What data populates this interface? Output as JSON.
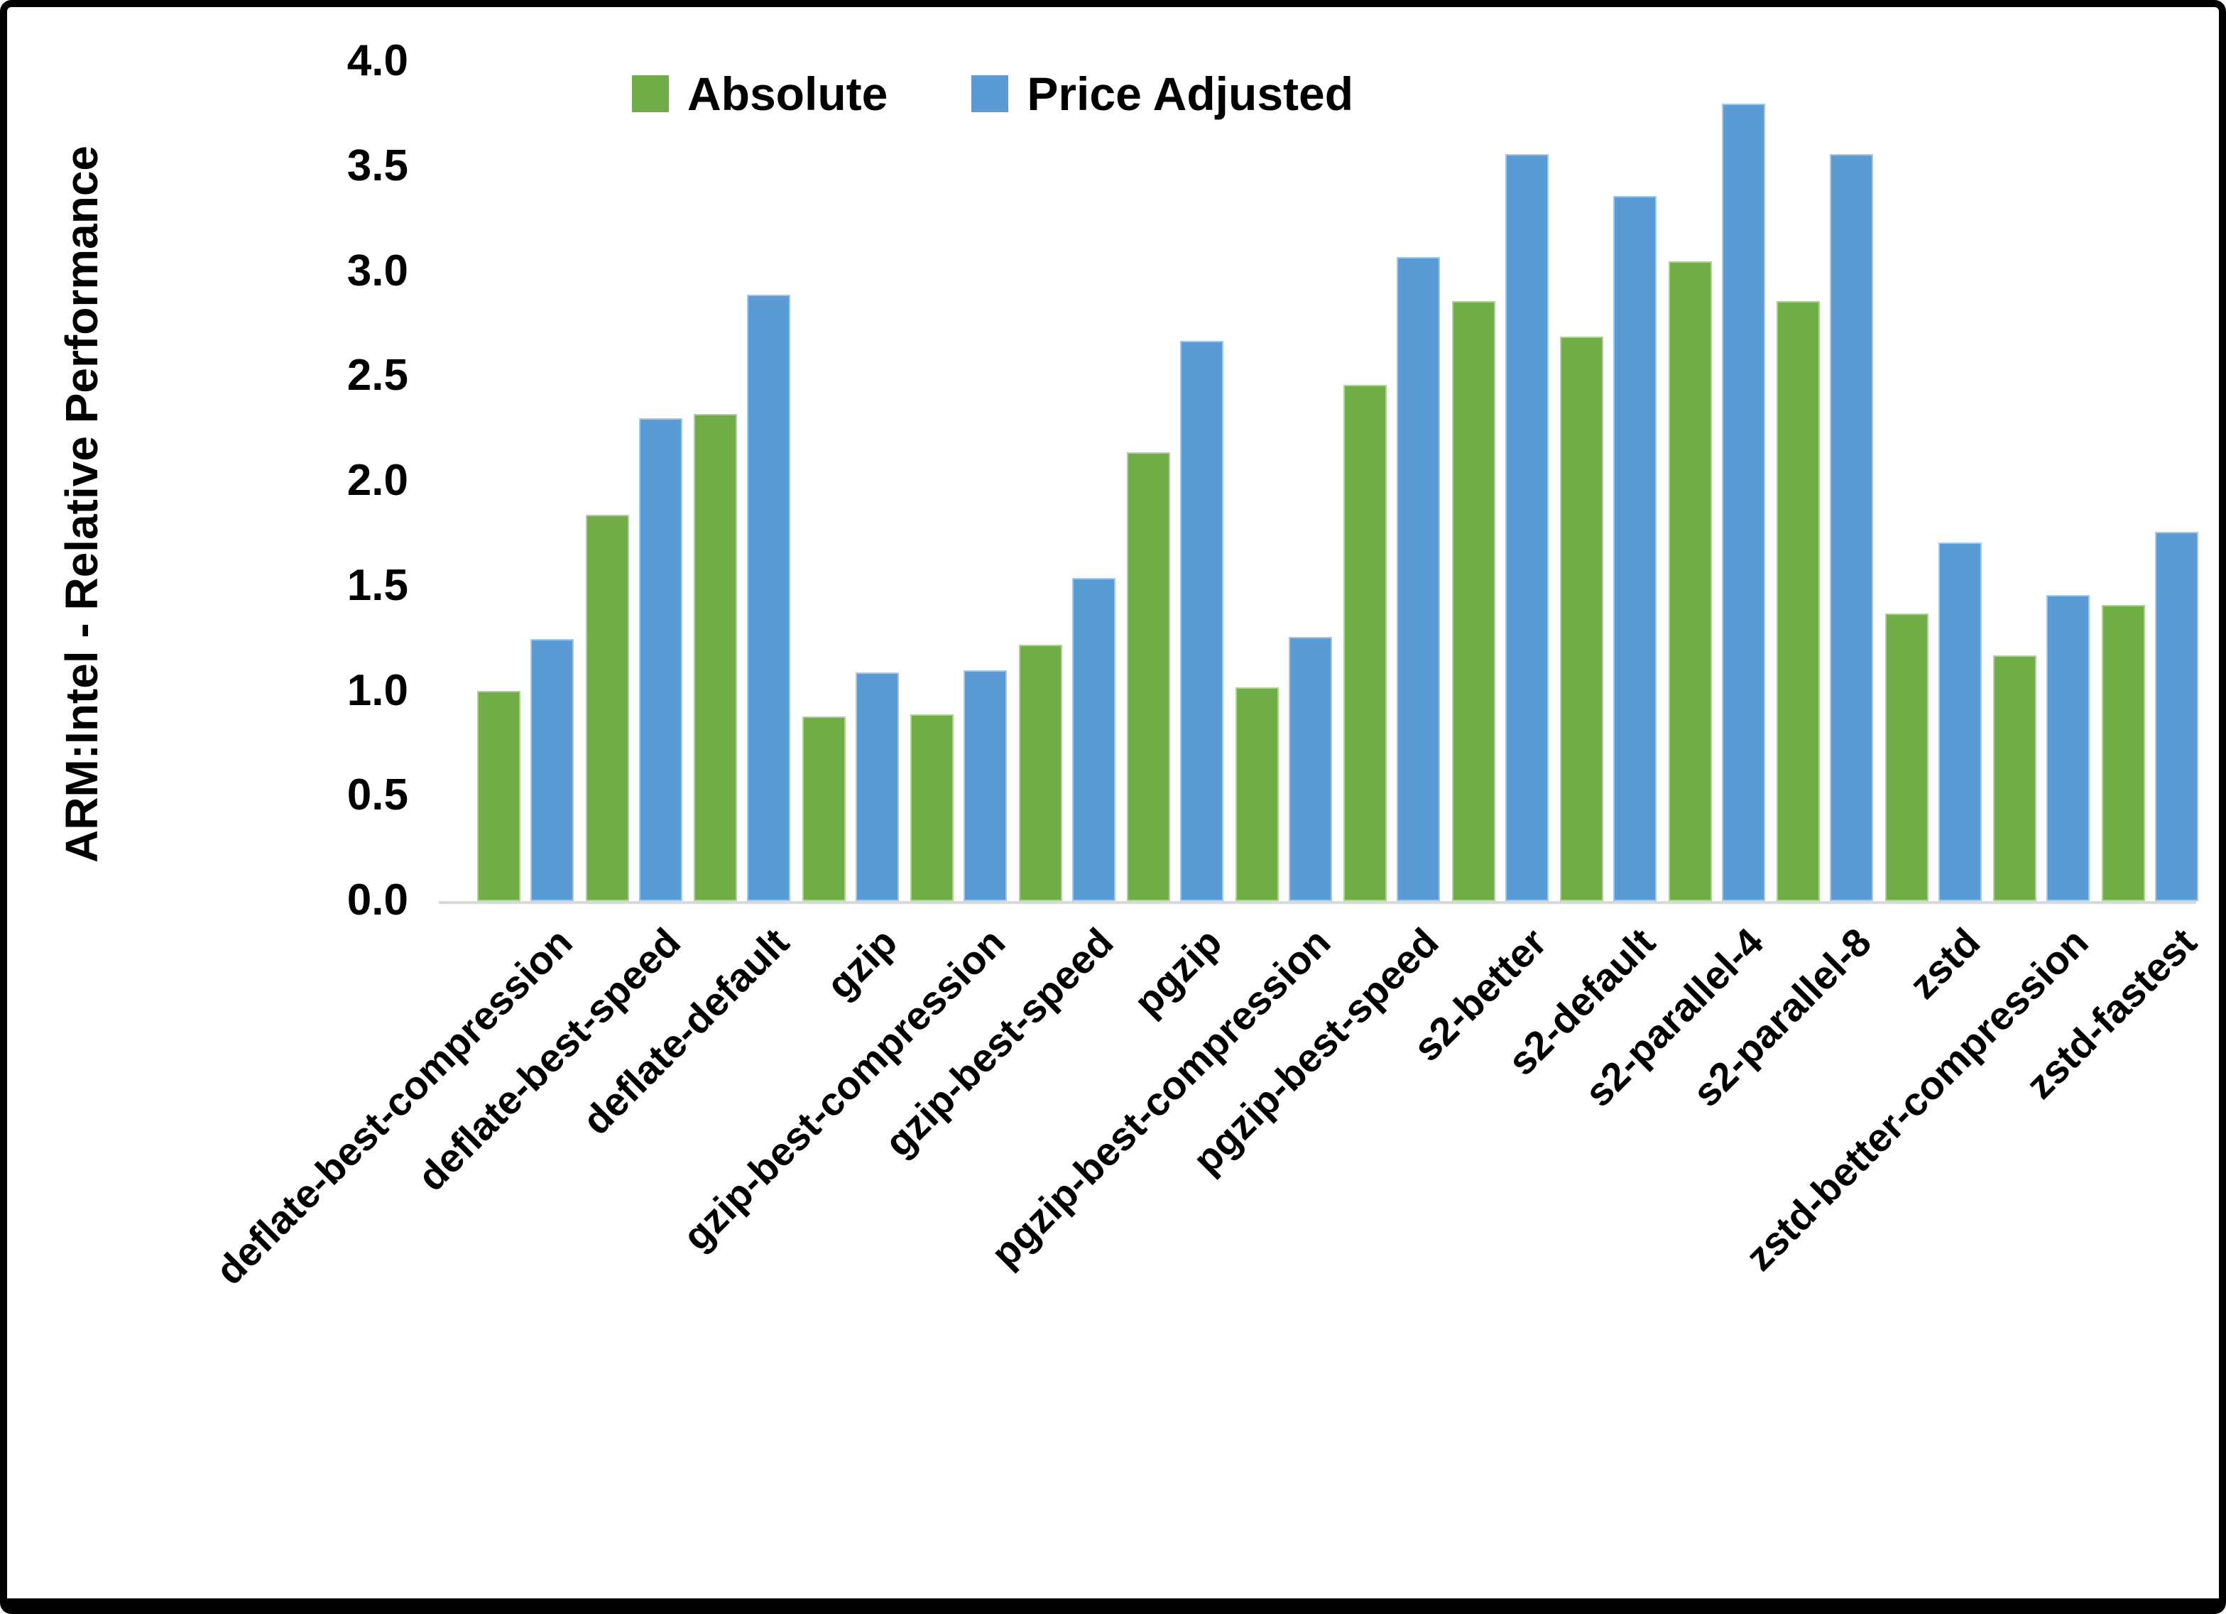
{
  "figure": {
    "background_color": "#ffffff",
    "border_color": "#000000",
    "text_color": "#000000",
    "axis_line_color": "#d9d9d9"
  },
  "y_axis": {
    "title": "ARM:Intel - Relative Performance",
    "tick_labels": [
      "0.0",
      "0.5",
      "1.0",
      "1.5",
      "2.0",
      "2.5",
      "3.0",
      "3.5",
      "4.0"
    ],
    "min": 0.0,
    "max": 4.0
  },
  "legend": {
    "items": [
      {
        "label": "Absolute",
        "color": "#70AD47"
      },
      {
        "label": "Price Adjusted",
        "color": "#5B9BD5"
      }
    ]
  },
  "chart_data": {
    "type": "bar",
    "title": "",
    "xlabel": "",
    "ylabel": "ARM:Intel - Relative Performance",
    "ylim": [
      0.0,
      4.0
    ],
    "ytick_step": 0.5,
    "grid": false,
    "legend_position": "top-center",
    "categories": [
      "deflate-best-compression",
      "deflate-best-speed",
      "deflate-default",
      "gzip",
      "gzip-best-compression",
      "gzip-best-speed",
      "pgzip",
      "pgzip-best-compression",
      "pgzip-best-speed",
      "s2-better",
      "s2-default",
      "s2-parallel-4",
      "s2-parallel-8",
      "zstd",
      "zstd-better-compression",
      "zstd-fastest"
    ],
    "series": [
      {
        "name": "Absolute",
        "color": "#70AD47",
        "values": [
          1.0,
          1.84,
          2.32,
          0.88,
          0.89,
          1.22,
          2.14,
          1.02,
          2.46,
          2.86,
          2.69,
          3.05,
          2.86,
          1.37,
          1.17,
          1.41
        ]
      },
      {
        "name": "Price Adjusted",
        "color": "#5B9BD5",
        "values": [
          1.25,
          2.3,
          2.89,
          1.09,
          1.1,
          1.54,
          2.67,
          1.26,
          3.07,
          3.56,
          3.36,
          3.8,
          3.56,
          1.71,
          1.46,
          1.76
        ]
      }
    ]
  }
}
